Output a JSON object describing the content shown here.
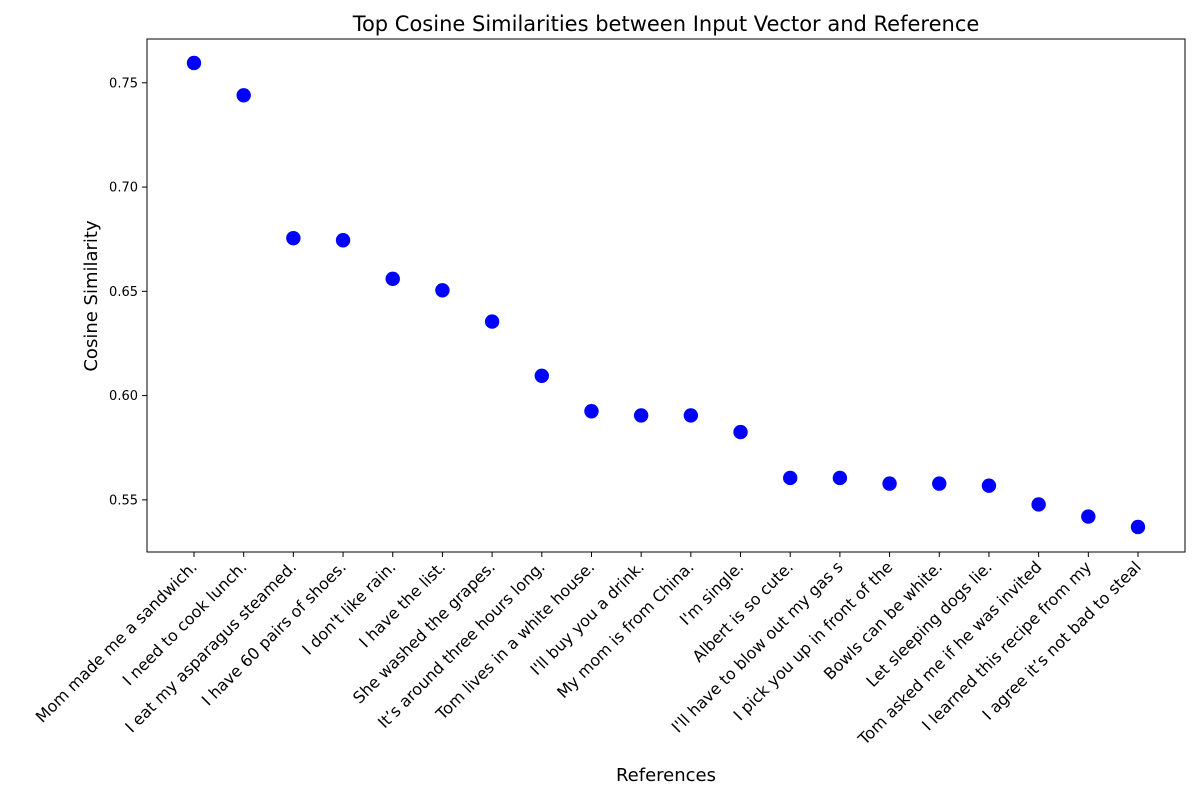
{
  "chart_data": {
    "type": "scatter",
    "title": "Top Cosine Similarities between Input Vector and Reference",
    "xlabel": "References",
    "ylabel": "Cosine Similarity",
    "ylim": [
      0.525,
      0.771
    ],
    "yticks": [
      "0.55",
      "0.60",
      "0.65",
      "0.70",
      "0.75"
    ],
    "grid": false,
    "marker_color": "#0000ff",
    "categories": [
      "Mom made me a sandwich.",
      "I need to cook lunch.",
      "I eat my asparagus steamed.",
      "I have 60 pairs of shoes.",
      "I don't like rain.",
      "I have the list.",
      "She washed the grapes.",
      "It’s around three hours long.",
      "Tom lives in a white house.",
      "I'll buy you a drink.",
      "My mom is from China.",
      "I'm single.",
      "Albert is so cute.",
      "I'll have to blow out my gas s",
      "I pick you up in front of the",
      "Bowls can be white.",
      "Let sleeping dogs lie.",
      "Tom asked me if he was invited",
      "I learned this recipe from my",
      "I agree it’s not bad to steal"
    ],
    "values": [
      0.7595,
      0.744,
      0.6755,
      0.6745,
      0.656,
      0.6505,
      0.6355,
      0.6095,
      0.5925,
      0.5905,
      0.5905,
      0.5825,
      0.5605,
      0.5605,
      0.5578,
      0.5578,
      0.5568,
      0.5478,
      0.542,
      0.537
    ]
  }
}
